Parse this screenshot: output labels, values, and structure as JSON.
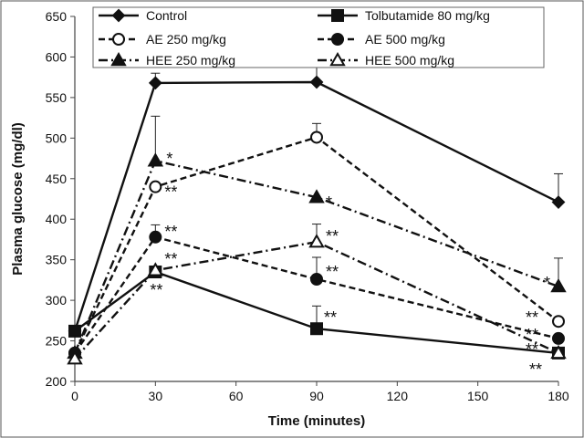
{
  "chart_data": {
    "type": "line",
    "title": "",
    "xlabel": "Time (minutes)",
    "ylabel": "Plasma glucose (mg/dl)",
    "x": [
      0,
      30,
      90,
      180
    ],
    "xticks": [
      "0",
      "30",
      "60",
      "90",
      "120",
      "150",
      "180"
    ],
    "xlim": [
      0,
      180
    ],
    "yticks": [
      "200",
      "250",
      "300",
      "350",
      "400",
      "450",
      "500",
      "550",
      "600",
      "650"
    ],
    "ylim": [
      200,
      650
    ],
    "grid": false,
    "legend_position": "top",
    "series": [
      {
        "name": "Control",
        "values": [
          262,
          568,
          569,
          421
        ],
        "err_up": [
          0,
          12,
          58,
          35
        ],
        "marker": "filled-diamond",
        "line": "solid"
      },
      {
        "name": "Tolbutamide 80 mg/kg",
        "values": [
          262,
          335,
          265,
          235
        ],
        "err_up": [
          0,
          0,
          28,
          0
        ],
        "marker": "filled-square",
        "line": "solid"
      },
      {
        "name": "AE 250 mg/kg",
        "values": [
          235,
          440,
          501,
          274
        ],
        "err_up": [
          0,
          0,
          17,
          0
        ],
        "marker": "open-circle",
        "line": "dashed"
      },
      {
        "name": "AE 500 mg/kg",
        "values": [
          235,
          378,
          326,
          253
        ],
        "err_up": [
          0,
          15,
          27,
          0
        ],
        "marker": "filled-circle",
        "line": "dashed"
      },
      {
        "name": "HEE 250 mg/kg",
        "values": [
          235,
          472,
          427,
          317
        ],
        "err_up": [
          0,
          55,
          0,
          35
        ],
        "marker": "filled-triangle",
        "line": "dash-dot"
      },
      {
        "name": "HEE 500 mg/kg",
        "values": [
          228,
          337,
          372,
          235
        ],
        "err_up": [
          0,
          0,
          22,
          0
        ],
        "marker": "open-triangle",
        "line": "dash-dot"
      }
    ],
    "annotations": [
      {
        "text": "*",
        "x": 30,
        "y": 472
      },
      {
        "text": "**",
        "x": 30,
        "y": 440
      },
      {
        "text": "**",
        "x": 30,
        "y": 378
      },
      {
        "text": "**",
        "x": 30,
        "y": 337
      },
      {
        "text": "**",
        "x": 30,
        "y": 335
      },
      {
        "text": "*",
        "x": 90,
        "y": 427
      },
      {
        "text": "**",
        "x": 90,
        "y": 372
      },
      {
        "text": "**",
        "x": 90,
        "y": 326
      },
      {
        "text": "**",
        "x": 90,
        "y": 265
      },
      {
        "text": "*",
        "x": 180,
        "y": 317
      },
      {
        "text": "**",
        "x": 180,
        "y": 274
      },
      {
        "text": "**",
        "x": 180,
        "y": 253
      },
      {
        "text": "**",
        "x": 180,
        "y": 235
      },
      {
        "text": "**",
        "x": 180,
        "y": 235
      }
    ]
  }
}
